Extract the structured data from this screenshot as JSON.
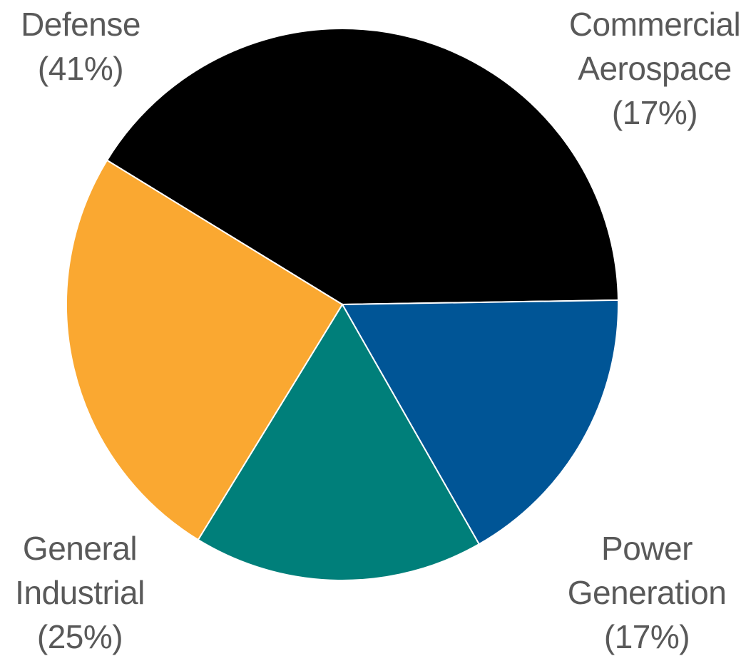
{
  "chart_data": {
    "type": "pie",
    "title": "",
    "slices": [
      {
        "label_lines": [
          "Defense",
          "(41%)"
        ],
        "value": 41,
        "color": "#000000"
      },
      {
        "label_lines": [
          "Commercial",
          "Aerospace",
          "(17%)"
        ],
        "value": 17,
        "color": "#005596"
      },
      {
        "label_lines": [
          "Power",
          "Generation",
          "(17%)"
        ],
        "value": 17,
        "color": "#007F7A"
      },
      {
        "label_lines": [
          "General",
          "Industrial",
          "(25%)"
        ],
        "value": 25,
        "color": "#FAA831"
      }
    ]
  }
}
